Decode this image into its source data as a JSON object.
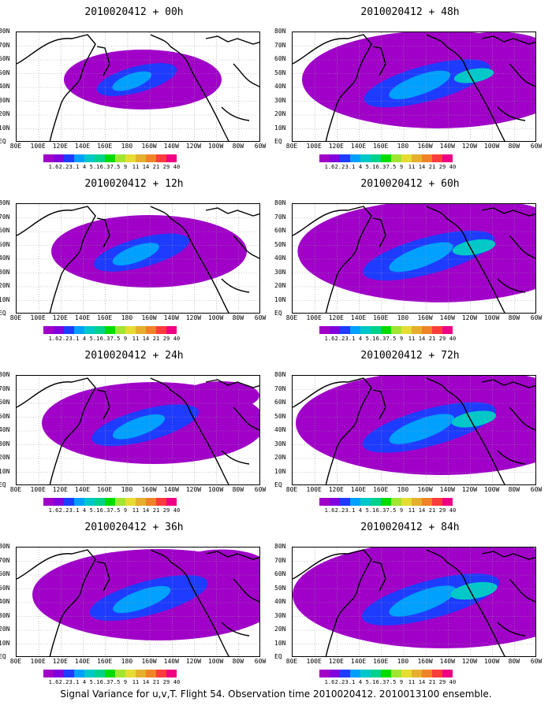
{
  "caption": "Signal Variance for u,v,T. Flight 54. Observation time 2010020412. 2010013100 ensemble.",
  "panels": [
    {
      "title": "2010020412 + 00h",
      "spread": 0.25
    },
    {
      "title": "2010020412 + 48h",
      "spread": 0.85
    },
    {
      "title": "2010020412 + 12h",
      "spread": 0.45
    },
    {
      "title": "2010020412 + 60h",
      "spread": 0.92
    },
    {
      "title": "2010020412 + 24h",
      "spread": 0.6
    },
    {
      "title": "2010020412 + 72h",
      "spread": 0.95
    },
    {
      "title": "2010020412 + 36h",
      "spread": 0.75
    },
    {
      "title": "2010020412 + 84h",
      "spread": 1.0
    }
  ],
  "lat_labels": [
    "80N",
    "70N",
    "60N",
    "50N",
    "40N",
    "30N",
    "20N",
    "10N",
    "EQ"
  ],
  "lon_labels": [
    "80E",
    "100E",
    "120E",
    "140E",
    "160E",
    "180",
    "160W",
    "140W",
    "120W",
    "100W",
    "80W",
    "60W"
  ],
  "colorbar": {
    "labels": [
      "1.6",
      "2.2",
      "3.1",
      "4",
      "5.1",
      "6.3",
      "7.5",
      "9",
      "11",
      "14",
      "21",
      "29",
      "40"
    ],
    "colors": [
      "#a000c8",
      "#8200dc",
      "#1e3cff",
      "#00a0ff",
      "#00c8c8",
      "#00d28c",
      "#00dc00",
      "#a0e632",
      "#e6dc32",
      "#e6af2d",
      "#f08228",
      "#fa3c3c",
      "#f00082"
    ]
  }
}
